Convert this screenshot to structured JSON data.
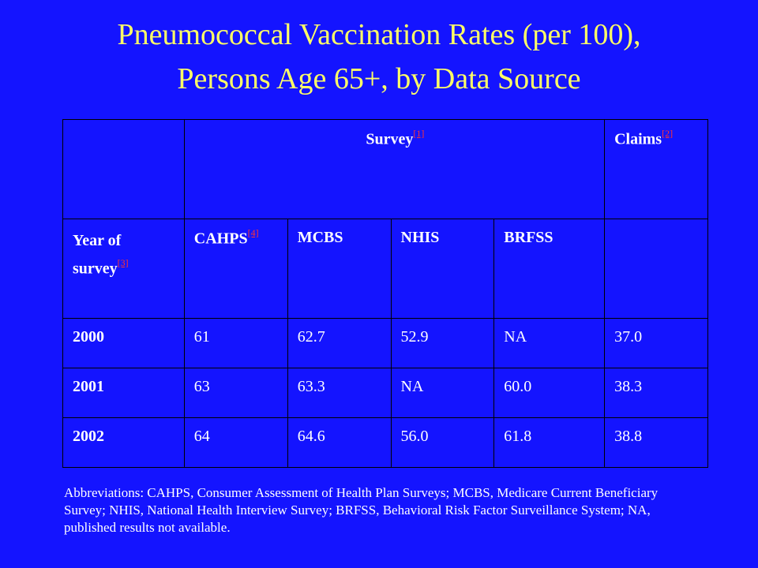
{
  "title": {
    "line1": "Pneumococcal Vaccination Rates (per 100),",
    "line2": "Persons Age 65+, by Data Source"
  },
  "table": {
    "group_headers": {
      "survey": "Survey",
      "survey_ref": "[1]",
      "claims": "Claims",
      "claims_ref": "[2]"
    },
    "columns": {
      "year_line1": "Year of",
      "year_line2": "survey",
      "year_ref": "[3]",
      "cahps": "CAHPS",
      "cahps_ref": "[4]",
      "mcbs": "MCBS",
      "nhis": "NHIS",
      "brfss": "BRFSS"
    },
    "rows": [
      {
        "year": "2000",
        "cahps": "61",
        "mcbs": "62.7",
        "nhis": "52.9",
        "brfss": "NA",
        "claims": "37.0"
      },
      {
        "year": "2001",
        "cahps": "63",
        "mcbs": "63.3",
        "nhis": "NA",
        "brfss": "60.0",
        "claims": "38.3"
      },
      {
        "year": "2002",
        "cahps": "64",
        "mcbs": "64.6",
        "nhis": "56.0",
        "brfss": "61.8",
        "claims": "38.8"
      }
    ]
  },
  "notes": "Abbreviations:  CAHPS, Consumer Assessment of Health Plan Surveys; MCBS, Medicare Current Beneficiary Survey; NHIS, National Health Interview Survey; BRFSS, Behavioral Risk Factor Surveillance System; NA, published results not available.",
  "colors": {
    "background": "#1414ff",
    "title": "#ffff66",
    "text": "#ffffff",
    "reference_links": "#ff3333",
    "grid": "#000000"
  }
}
